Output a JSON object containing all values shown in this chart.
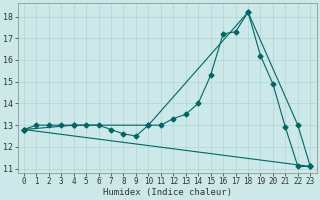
{
  "xlabel": "Humidex (Indice chaleur)",
  "background_color": "#cce8e8",
  "grid_color": "#b0d4d4",
  "line_color": "#006666",
  "xlim": [
    -0.5,
    23.5
  ],
  "ylim": [
    10.8,
    18.6
  ],
  "yticks": [
    11,
    12,
    13,
    14,
    15,
    16,
    17,
    18
  ],
  "xticks": [
    0,
    1,
    2,
    3,
    4,
    5,
    6,
    7,
    8,
    9,
    10,
    11,
    12,
    13,
    14,
    15,
    16,
    17,
    18,
    19,
    20,
    21,
    22,
    23
  ],
  "line1_x": [
    0,
    1,
    2,
    3,
    4,
    5,
    6,
    7,
    8,
    9,
    10,
    11,
    12,
    13,
    14,
    15,
    16,
    17,
    18,
    19,
    20,
    21,
    22,
    23
  ],
  "line1_y": [
    12.8,
    13.0,
    13.0,
    13.0,
    13.0,
    13.0,
    13.0,
    12.8,
    12.6,
    12.5,
    13.0,
    13.0,
    13.3,
    13.5,
    14.0,
    15.3,
    17.2,
    17.3,
    18.2,
    16.2,
    14.9,
    12.9,
    11.1,
    11.1
  ],
  "line2_x": [
    0,
    4,
    10,
    18,
    22,
    23
  ],
  "line2_y": [
    12.8,
    13.0,
    13.0,
    18.2,
    13.0,
    11.1
  ],
  "line3_x": [
    0,
    23
  ],
  "line3_y": [
    12.8,
    11.1
  ],
  "xlabel_fontsize": 6.5,
  "tick_fontsize": 5.5,
  "linewidth": 0.8,
  "markersize": 2.5
}
